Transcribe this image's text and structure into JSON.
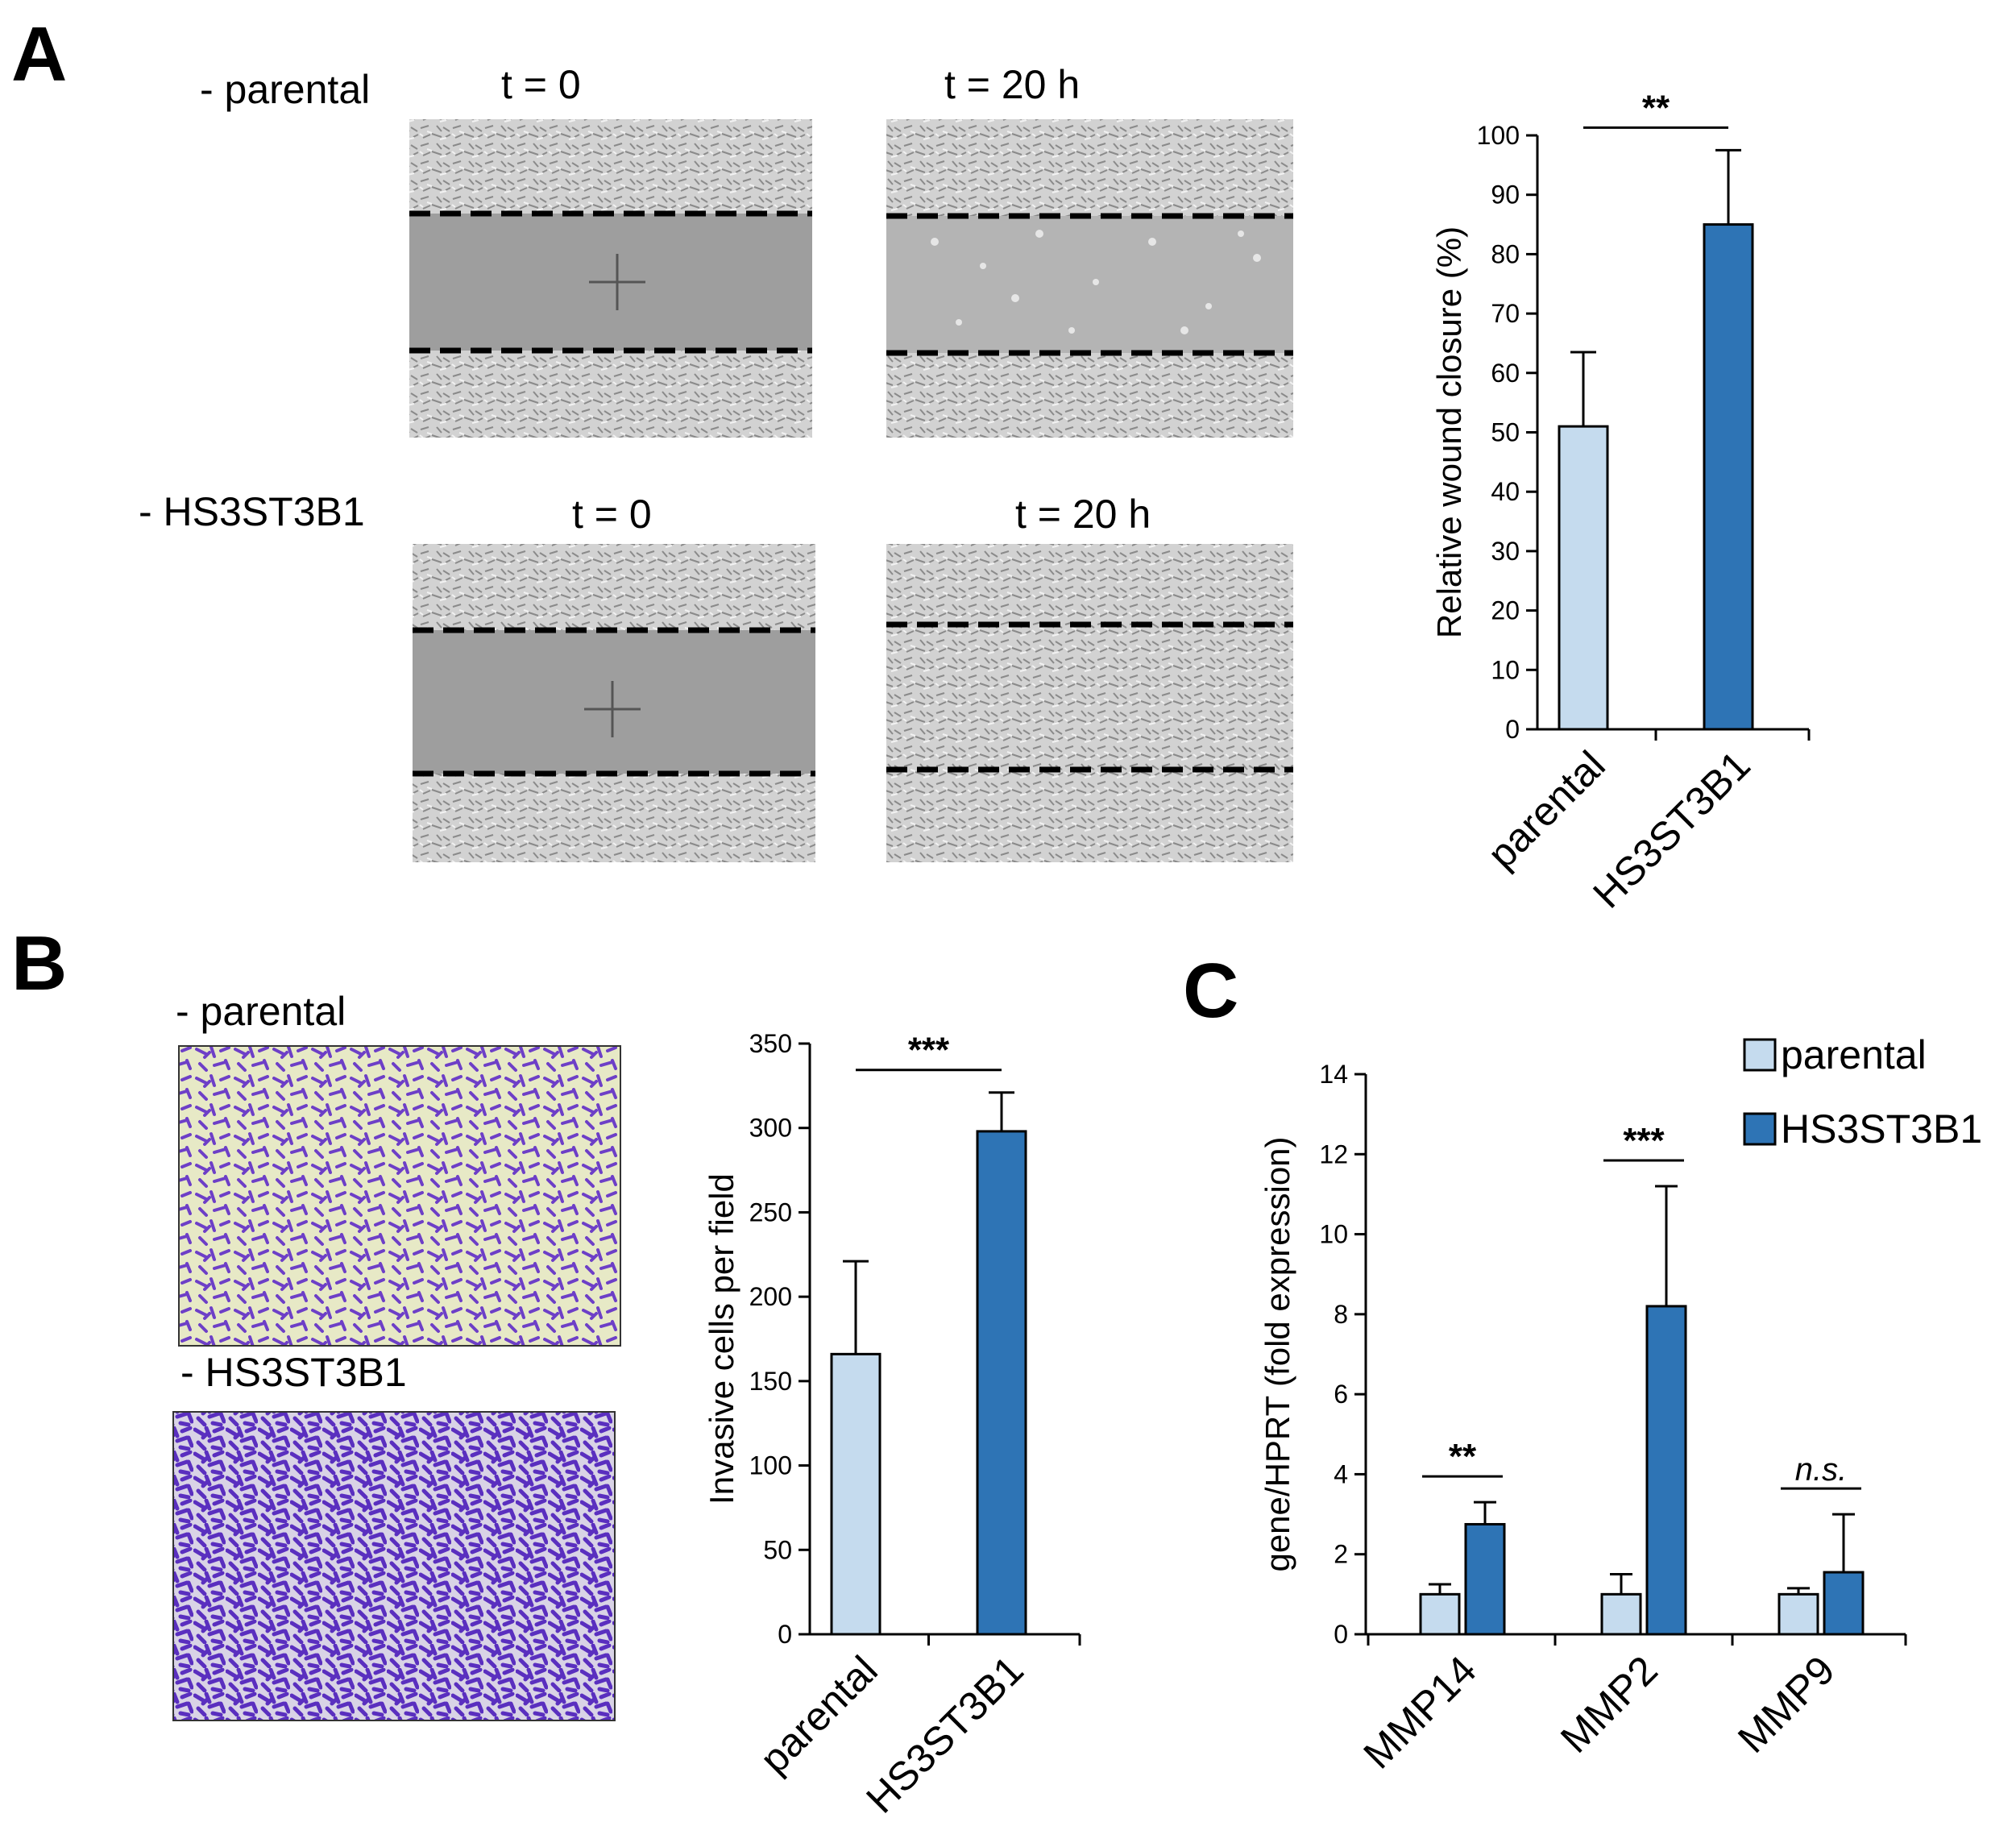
{
  "panels": {
    "A": {
      "letter": "A",
      "row_labels": [
        "- parental",
        "- HS3ST3B1"
      ],
      "time_labels": {
        "parental_t0": "t = 0",
        "parental_t20": "t = 20 h",
        "hs_t0": "t = 0",
        "hs_t20": "t = 20 h"
      }
    },
    "B": {
      "letter": "B",
      "row_labels": [
        "- parental",
        "- HS3ST3B1"
      ]
    },
    "C": {
      "letter": "C"
    }
  },
  "colors": {
    "parental": "#c5dbee",
    "hs3st3b1": "#2e74b5",
    "wound_gap": "#9a9a9a",
    "cells_bg": "#cfcfcf",
    "invasion_bg": "#e9ebc8",
    "invasion_cells": "#6a3cc4"
  },
  "chart_data": [
    {
      "id": "A",
      "type": "bar",
      "categories": [
        "parental",
        "HS3ST3B1"
      ],
      "values": [
        51,
        85
      ],
      "errors": [
        12.5,
        12.5
      ],
      "ylabel": "Relative wound closure (%)",
      "ylim": [
        0,
        100
      ],
      "yticks": [
        0,
        10,
        20,
        30,
        40,
        50,
        60,
        70,
        80,
        90,
        100
      ],
      "significance": [
        {
          "between": [
            0,
            1
          ],
          "label": "**"
        }
      ]
    },
    {
      "id": "B",
      "type": "bar",
      "categories": [
        "parental",
        "HS3ST3B1"
      ],
      "values": [
        166,
        298
      ],
      "errors": [
        55,
        23
      ],
      "ylabel": "Invasive cells per field",
      "ylim": [
        0,
        350
      ],
      "yticks": [
        0,
        50,
        100,
        150,
        200,
        250,
        300,
        350
      ],
      "significance": [
        {
          "between": [
            0,
            1
          ],
          "label": "***"
        }
      ]
    },
    {
      "id": "C",
      "type": "bar",
      "categories": [
        "MMP14",
        "MMP2",
        "MMP9"
      ],
      "series": [
        {
          "name": "parental",
          "values": [
            1.0,
            1.0,
            1.0
          ],
          "errors": [
            0.25,
            0.5,
            0.15
          ]
        },
        {
          "name": "HS3ST3B1",
          "values": [
            2.75,
            8.2,
            1.55
          ],
          "errors": [
            0.55,
            3.0,
            1.45
          ]
        }
      ],
      "ylabel": "gene/HPRT (fold expression)",
      "ylim": [
        0,
        14
      ],
      "yticks": [
        0,
        2,
        4,
        6,
        8,
        10,
        12,
        14
      ],
      "legend_position": "top-right",
      "significance": [
        {
          "category": 0,
          "label": "**",
          "italic": false
        },
        {
          "category": 1,
          "label": "***",
          "italic": false
        },
        {
          "category": 2,
          "label": "n.s.",
          "italic": true
        }
      ]
    }
  ]
}
